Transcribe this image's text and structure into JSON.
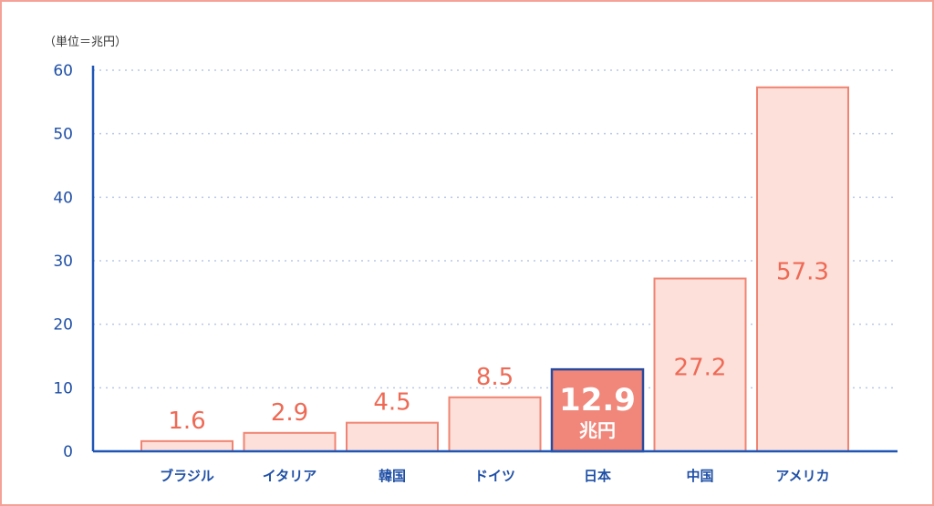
{
  "chart_data": {
    "type": "bar",
    "unit_label": "（単位＝兆円）",
    "categories": [
      "ブラジル",
      "イタリア",
      "韓国",
      "ドイツ",
      "日本",
      "中国",
      "アメリカ"
    ],
    "values": [
      1.6,
      2.9,
      4.5,
      8.5,
      12.9,
      27.2,
      57.3
    ],
    "value_labels": [
      "1.6",
      "2.9",
      "4.5",
      "8.5",
      "12.9",
      "27.2",
      "57.3"
    ],
    "highlight_index": 4,
    "highlight_sublabel": "兆円",
    "ylim": [
      0,
      60
    ],
    "yticks": [
      0,
      10,
      20,
      30,
      40,
      50,
      60
    ],
    "grid": true,
    "colors": {
      "bar_fill": "#fde0da",
      "bar_stroke": "#f08472",
      "highlight_fill": "#f0877a",
      "highlight_stroke": "#2a4a9c",
      "value_text": "#ee6a55",
      "axis": "#1f56b5",
      "tick_text": "#1f4fa6",
      "grid": "#b9c7e6",
      "frame": "#f4a298"
    }
  }
}
